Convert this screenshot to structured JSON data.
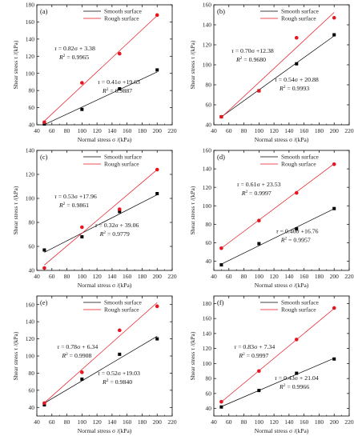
{
  "chart_data": [
    {
      "type": "scatter",
      "panel_label": "(a)",
      "xlabel": "Normal stress σ /(kPa)",
      "ylabel": "Shear stress τ /(kPa)",
      "xlim": [
        40,
        220
      ],
      "ylim": [
        40,
        180
      ],
      "x_ticks": [
        40,
        60,
        80,
        100,
        120,
        140,
        160,
        180,
        200,
        220
      ],
      "y_ticks": [
        40,
        60,
        80,
        100,
        120,
        140,
        160,
        180
      ],
      "legend_position": "top-center",
      "series": [
        {
          "name": "Smooth surface",
          "color": "#000000",
          "marker": "square",
          "x": [
            50,
            100,
            150,
            200
          ],
          "y": [
            41,
            58,
            82,
            104
          ],
          "fit": {
            "slope": 0.41,
            "intercept": 19.63
          },
          "eq_text": {
            "lhs": "τ",
            "rhs": " = 0.41σ +19.63"
          },
          "r2_text": {
            "lhs": "R",
            "sup": "2",
            "rhs": " = 0.9887"
          }
        },
        {
          "name": "Rough surface",
          "color": "#e8141e",
          "marker": "circle",
          "x": [
            50,
            100,
            150,
            200
          ],
          "y": [
            43,
            89,
            123,
            168
          ],
          "fit": {
            "slope": 0.82,
            "intercept": 3.38
          },
          "eq_text": {
            "lhs": "τ",
            "rhs": " = 0.82σ + 3.38"
          },
          "r2_text": {
            "lhs": "R",
            "sup": "2",
            "rhs": " = 0.9965"
          }
        }
      ]
    },
    {
      "type": "scatter",
      "panel_label": "(b)",
      "xlabel": "Normal stress σ /(kPa)",
      "ylabel": "Shear stress τ /(kPa)",
      "xlim": [
        40,
        220
      ],
      "ylim": [
        40,
        160
      ],
      "x_ticks": [
        40,
        60,
        80,
        100,
        120,
        140,
        160,
        180,
        200,
        220
      ],
      "y_ticks": [
        40,
        60,
        80,
        100,
        120,
        140,
        160
      ],
      "legend_position": "top-center",
      "series": [
        {
          "name": "Smooth surface",
          "color": "#000000",
          "marker": "square",
          "x": [
            50,
            100,
            150,
            200
          ],
          "y": [
            48,
            74,
            101,
            130
          ],
          "fit": {
            "slope": 0.54,
            "intercept": 20.88
          },
          "eq_text": {
            "lhs": "τ",
            "rhs": " = 0.54σ + 20.88"
          },
          "r2_text": {
            "lhs": "R",
            "sup": "2",
            "rhs": " = 0.9993"
          }
        },
        {
          "name": "Rough surface",
          "color": "#e8141e",
          "marker": "circle",
          "x": [
            50,
            100,
            150,
            200
          ],
          "y": [
            48,
            74,
            127,
            147
          ],
          "fit": {
            "slope": 0.7,
            "intercept": 12.38
          },
          "eq_text": {
            "lhs": "τ",
            "rhs": " = 0.70σ +12.38"
          },
          "r2_text": {
            "lhs": "R",
            "sup": "2",
            "rhs": " = 0.9680"
          }
        }
      ]
    },
    {
      "type": "scatter",
      "panel_label": "(c)",
      "xlabel": "Normal stress σ /(kPa)",
      "ylabel": "Shear stress τ /(kPa)",
      "xlim": [
        40,
        220
      ],
      "ylim": [
        40,
        140
      ],
      "x_ticks": [
        40,
        60,
        80,
        100,
        120,
        140,
        160,
        180,
        200,
        220
      ],
      "y_ticks": [
        40,
        60,
        80,
        100,
        120,
        140
      ],
      "legend_position": "top-center",
      "series": [
        {
          "name": "Smooth surface",
          "color": "#000000",
          "marker": "square",
          "x": [
            50,
            100,
            150,
            200
          ],
          "y": [
            57,
            68,
            89,
            104
          ],
          "fit": {
            "slope": 0.32,
            "intercept": 39.06
          },
          "eq_text": {
            "lhs": "τ",
            "rhs": " = 0.32σ + 39.06"
          },
          "r2_text": {
            "lhs": "R",
            "sup": "2",
            "rhs": " = 0.9779"
          }
        },
        {
          "name": "Rough surface",
          "color": "#e8141e",
          "marker": "circle",
          "x": [
            50,
            100,
            150,
            200
          ],
          "y": [
            42,
            76,
            91,
            124
          ],
          "fit": {
            "slope": 0.53,
            "intercept": 17.96
          },
          "eq_text": {
            "lhs": "τ",
            "rhs": " = 0.53σ +17.96"
          },
          "r2_text": {
            "lhs": "R",
            "sup": "2",
            "rhs": " = 0.9861"
          }
        }
      ]
    },
    {
      "type": "scatter",
      "panel_label": "(d)",
      "xlabel": "Normal stress σ /(kPa)",
      "ylabel": "Shear stress τ /(kPa)",
      "xlim": [
        40,
        220
      ],
      "ylim": [
        30,
        160
      ],
      "x_ticks": [
        40,
        60,
        80,
        100,
        120,
        140,
        160,
        180,
        200,
        220
      ],
      "y_ticks": [
        40,
        60,
        80,
        100,
        120,
        140,
        160
      ],
      "legend_position": "top-center",
      "series": [
        {
          "name": "Smooth surface",
          "color": "#000000",
          "marker": "square",
          "x": [
            50,
            100,
            150,
            200
          ],
          "y": [
            36,
            59,
            75,
            97
          ],
          "fit": {
            "slope": 0.4,
            "intercept": 16.76
          },
          "eq_text": {
            "lhs": "τ",
            "rhs": " = 0.40σ +16.76"
          },
          "r2_text": {
            "lhs": "R",
            "sup": "2",
            "rhs": " = 0.9957"
          }
        },
        {
          "name": "Rough surface",
          "color": "#e8141e",
          "marker": "circle",
          "x": [
            50,
            100,
            150,
            200
          ],
          "y": [
            54,
            84,
            114,
            145
          ],
          "fit": {
            "slope": 0.61,
            "intercept": 23.53
          },
          "eq_text": {
            "lhs": "τ",
            "rhs": " = 0.61σ + 23.53"
          },
          "r2_text": {
            "lhs": "R",
            "sup": "2",
            "rhs": " = 0.9997"
          }
        }
      ]
    },
    {
      "type": "scatter",
      "panel_label": "(e)",
      "xlabel": "Normal stress σ /(kPa)",
      "ylabel": "Shear stress τ /(kPa)",
      "xlim": [
        40,
        220
      ],
      "ylim": [
        30,
        170
      ],
      "x_ticks": [
        40,
        60,
        80,
        100,
        120,
        140,
        160,
        180,
        200,
        220
      ],
      "y_ticks": [
        40,
        60,
        80,
        100,
        120,
        140,
        160
      ],
      "legend_position": "top-center",
      "series": [
        {
          "name": "Smooth surface",
          "color": "#000000",
          "marker": "square",
          "x": [
            50,
            100,
            150,
            200
          ],
          "y": [
            43,
            73,
            102,
            120
          ],
          "fit": {
            "slope": 0.52,
            "intercept": 19.03
          },
          "eq_text": {
            "lhs": "τ",
            "rhs": " = 0.52σ +19.03"
          },
          "r2_text": {
            "lhs": "R",
            "sup": "2",
            "rhs": " = 0.9840"
          }
        },
        {
          "name": "Rough surface",
          "color": "#e8141e",
          "marker": "circle",
          "x": [
            50,
            100,
            150,
            200
          ],
          "y": [
            45,
            81,
            130,
            158
          ],
          "fit": {
            "slope": 0.78,
            "intercept": 6.34
          },
          "eq_text": {
            "lhs": "τ",
            "rhs": " = 0.78σ + 6.34"
          },
          "r2_text": {
            "lhs": "R",
            "sup": "2",
            "rhs": " = 0.9908"
          }
        }
      ]
    },
    {
      "type": "scatter",
      "panel_label": "(f)",
      "xlabel": "Normal stress σ /(kPa)",
      "ylabel": "Shear stress τ /(kPa)",
      "xlim": [
        40,
        220
      ],
      "ylim": [
        30,
        190
      ],
      "x_ticks": [
        40,
        60,
        80,
        100,
        120,
        140,
        160,
        180,
        200,
        220
      ],
      "y_ticks": [
        40,
        60,
        80,
        100,
        120,
        140,
        160,
        180
      ],
      "legend_position": "top-center",
      "series": [
        {
          "name": "Smooth surface",
          "color": "#000000",
          "marker": "square",
          "x": [
            50,
            100,
            150,
            200
          ],
          "y": [
            42,
            64,
            87,
            106
          ],
          "fit": {
            "slope": 0.43,
            "intercept": 21.04
          },
          "eq_text": {
            "lhs": "τ",
            "rhs": " = 0.43σ + 21.04"
          },
          "r2_text": {
            "lhs": "R",
            "sup": "2",
            "rhs": " = 0.9966"
          }
        },
        {
          "name": "Rough surface",
          "color": "#e8141e",
          "marker": "circle",
          "x": [
            50,
            100,
            150,
            200
          ],
          "y": [
            49,
            90,
            132,
            174
          ],
          "fit": {
            "slope": 0.83,
            "intercept": 7.34
          },
          "eq_text": {
            "lhs": "τ",
            "rhs": " = 0.83σ + 7.34"
          },
          "r2_text": {
            "lhs": "R",
            "sup": "2",
            "rhs": " = 0.9997"
          }
        }
      ]
    }
  ]
}
